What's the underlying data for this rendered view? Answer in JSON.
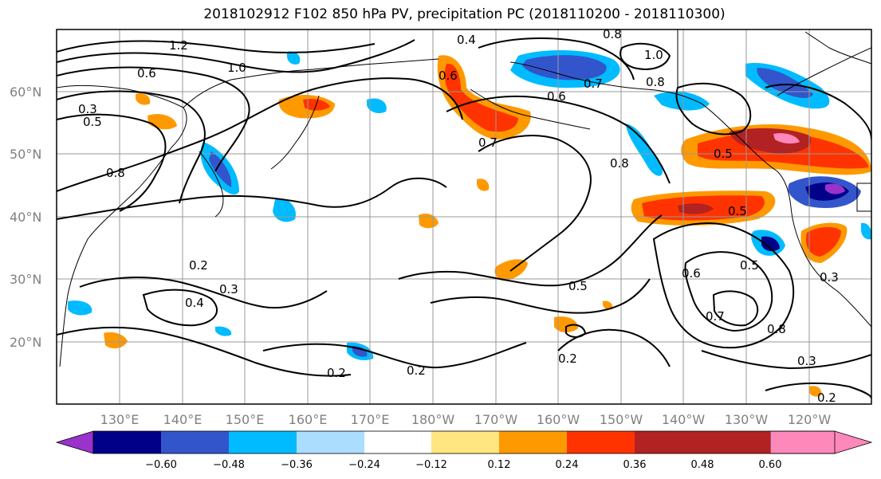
{
  "title": "2018102912 F102 850 hPa PV, precipitation PC (2018110200 - 2018110300)",
  "map": {
    "lat_labels": [
      "60°N",
      "50°N",
      "40°N",
      "30°N",
      "20°N"
    ],
    "lon_labels": [
      "130°E",
      "140°E",
      "150°E",
      "160°E",
      "170°E",
      "180°W",
      "170°W",
      "160°W",
      "150°W",
      "140°W",
      "130°W",
      "120°W"
    ],
    "contour_labels": [
      "1.2",
      "0.6",
      "1.0",
      "0.4",
      "0.3",
      "0.5",
      "0.8",
      "0.6",
      "0.8",
      "0.7",
      "1.0",
      "0.6",
      "0.8",
      "0.5",
      "0.7",
      "0.8",
      "0.5",
      "0.2",
      "0.3",
      "0.4",
      "0.5",
      "0.6",
      "0.7",
      "0.8",
      "0.5",
      "0.3",
      "0.2",
      "0.2",
      "0.2",
      "0.3",
      "0.2"
    ]
  },
  "colorbar": {
    "tick_labels": [
      "−0.60",
      "−0.48",
      "−0.36",
      "−0.24",
      "−0.12",
      "0.12",
      "0.24",
      "0.36",
      "0.48",
      "0.60"
    ],
    "colors": [
      "#9933cc",
      "#000088",
      "#3355cc",
      "#00bbff",
      "#aaddff",
      "#ffffff",
      "#ffe680",
      "#ff9900",
      "#ff3300",
      "#b22222",
      "#ff88bb"
    ]
  },
  "colors": {
    "grid": "#999999",
    "coast": "#000000"
  }
}
